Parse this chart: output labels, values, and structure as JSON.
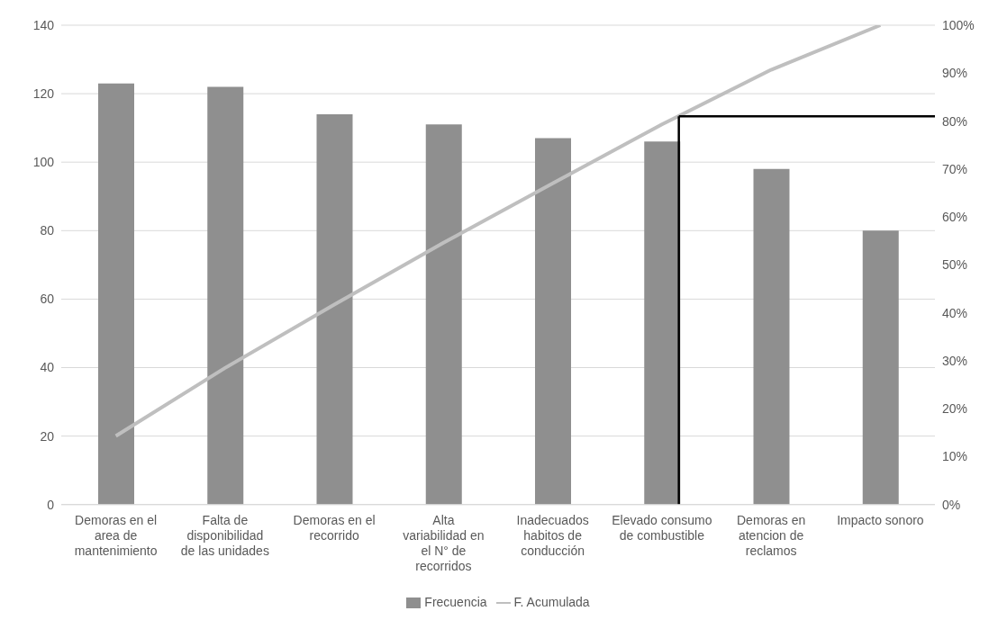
{
  "chart_data": {
    "type": "bar",
    "categories": [
      "Demoras en el area de mantenimiento",
      "Falta de disponibilidad de las unidades",
      "Demoras en el recorrido",
      "Alta variabilidad en el N° de recorridos",
      "Inadecuados habitos de conducción",
      "Elevado consumo de combustible",
      "Demoras en atencion de reclamos",
      "Impacto sonoro"
    ],
    "series": [
      {
        "name": "Frecuencia",
        "color": "#8f8f8f",
        "values": [
          123,
          122,
          114,
          111,
          107,
          106,
          98,
          80
        ]
      },
      {
        "name": "F. Acumulada",
        "type": "line",
        "axis": "y2",
        "color": "#bfbfbf",
        "values": [
          14.3,
          28.5,
          41.7,
          54.6,
          67.0,
          79.3,
          90.7,
          100
        ]
      }
    ],
    "ylim": [
      0,
      140
    ],
    "yticks": [
      0,
      20,
      40,
      60,
      80,
      100,
      120,
      140
    ],
    "y2lim": [
      0,
      100
    ],
    "y2ticks": [
      {
        "value": 0,
        "label": "0%"
      },
      {
        "value": 10,
        "label": "10%"
      },
      {
        "value": 20,
        "label": "20%"
      },
      {
        "value": 30,
        "label": "30%"
      },
      {
        "value": 40,
        "label": "40%"
      },
      {
        "value": 50,
        "label": "50%"
      },
      {
        "value": 60,
        "label": "60%"
      },
      {
        "value": 70,
        "label": "70%"
      },
      {
        "value": 80,
        "label": "80%"
      },
      {
        "value": 90,
        "label": "90%"
      },
      {
        "value": 100,
        "label": "100%"
      }
    ],
    "ref_lines": [
      {
        "axis": "y2",
        "value": 81,
        "color": "#000000"
      },
      {
        "axis": "x",
        "value": "Elevado consumo de combustible",
        "color": "#000000"
      }
    ],
    "grid": "y",
    "legend": "bottom",
    "marker": "none",
    "line_style": "solid"
  }
}
